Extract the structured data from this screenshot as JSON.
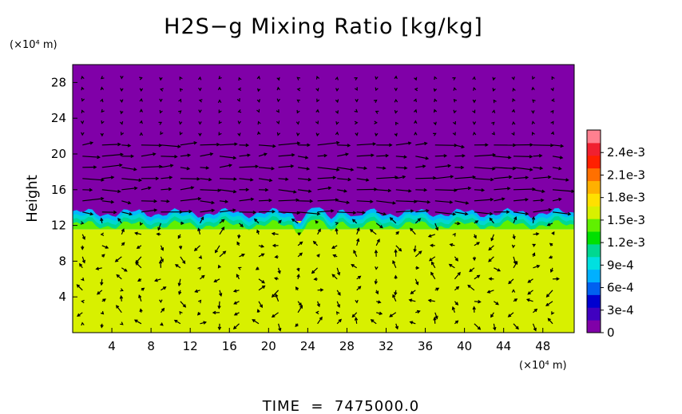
{
  "chart_data": {
    "type": "heatmap",
    "title": "H2S−g Mixing Ratio [kg/kg]",
    "y_axis": {
      "label": "Height",
      "unit_label": "(×10⁴ m)",
      "range": [
        0,
        30
      ],
      "ticks": [
        "4",
        "8",
        "12",
        "16",
        "20",
        "24",
        "28"
      ]
    },
    "x_axis": {
      "unit_label": "(×10⁴ m)",
      "range": [
        0,
        51.2
      ],
      "ticks": [
        "4",
        "8",
        "12",
        "16",
        "20",
        "24",
        "28",
        "32",
        "36",
        "40",
        "44",
        "48"
      ]
    },
    "colorbar": {
      "labels": [
        "0",
        "3e-4",
        "6e-4",
        "9e-4",
        "1.2e-3",
        "1.5e-3",
        "1.8e-3",
        "2.1e-3",
        "2.4e-3"
      ],
      "range": [
        0,
        0.0027
      ],
      "colors": [
        "#8000a8",
        "#4000c0",
        "#0000d0",
        "#0060f0",
        "#00b0ff",
        "#00e0e0",
        "#00d890",
        "#00e000",
        "#60f000",
        "#d8f000",
        "#ffe000",
        "#ffb000",
        "#ff7000",
        "#ff2000",
        "#f02030",
        "#ff8090"
      ]
    },
    "field": {
      "background_value": 0,
      "lower_layer_value": 0.0017,
      "interface_height": 12.5,
      "colors": {
        "background": "#8000a8",
        "lower_layer": "#d8f000",
        "interface_band": [
          "#00b8ff",
          "#00d8d0",
          "#00d890",
          "#60f000"
        ]
      }
    },
    "vector_field": {
      "arrow_color": "#000000"
    },
    "time_label": "TIME  =  7475000.0"
  }
}
